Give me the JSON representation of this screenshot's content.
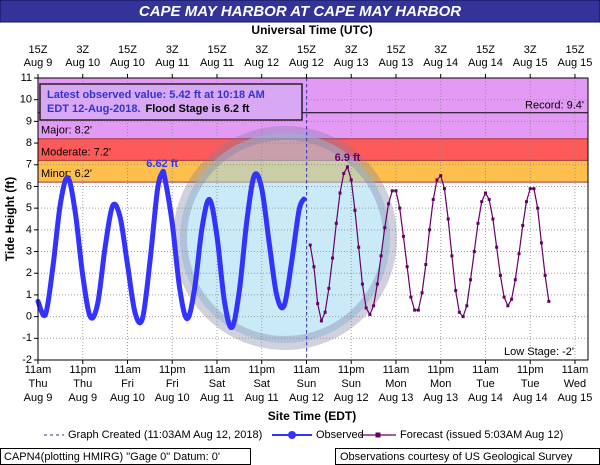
{
  "chart_data": {
    "type": "line",
    "title": "CAPE MAY HARBOR AT CAPE MAY HARBOR",
    "top_axis_label": "Universal Time (UTC)",
    "xlabel": "Site Time (EDT)",
    "ylabel": "Tide Height (ft)",
    "xlim": [
      "Aug 9 11:00",
      "Aug 15 14:30"
    ],
    "ylim": [
      -2,
      11
    ],
    "yticks": [
      -2,
      -1,
      0,
      1,
      2,
      3,
      4,
      5,
      6,
      7,
      8,
      9,
      10,
      11
    ],
    "grid": true,
    "xticks": [
      {
        "value": "Aug 9 11:00",
        "label": [
          "11am",
          "Thu",
          "Aug 9"
        ]
      },
      {
        "value": "Aug 9 23:00",
        "label": [
          "11pm",
          "Thu",
          "Aug 9"
        ]
      },
      {
        "value": "Aug 10 11:00",
        "label": [
          "11am",
          "Fri",
          "Aug 10"
        ]
      },
      {
        "value": "Aug 10 23:00",
        "label": [
          "11pm",
          "Fri",
          "Aug 10"
        ]
      },
      {
        "value": "Aug 11 11:00",
        "label": [
          "11am",
          "Sat",
          "Aug 11"
        ]
      },
      {
        "value": "Aug 11 23:00",
        "label": [
          "11pm",
          "Sat",
          "Aug 11"
        ]
      },
      {
        "value": "Aug 12 11:00",
        "label": [
          "11am",
          "Sun",
          "Aug 12"
        ]
      },
      {
        "value": "Aug 12 23:00",
        "label": [
          "11pm",
          "Sun",
          "Aug 12"
        ]
      },
      {
        "value": "Aug 13 11:00",
        "label": [
          "11am",
          "Mon",
          "Aug 13"
        ]
      },
      {
        "value": "Aug 13 23:00",
        "label": [
          "11pm",
          "Mon",
          "Aug 13"
        ]
      },
      {
        "value": "Aug 14 11:00",
        "label": [
          "11am",
          "Tue",
          "Aug 14"
        ]
      },
      {
        "value": "Aug 14 23:00",
        "label": [
          "11pm",
          "Tue",
          "Aug 14"
        ]
      },
      {
        "value": "Aug 15 11:00",
        "label": [
          "11am",
          "Wed",
          "Aug 15"
        ]
      }
    ],
    "top_xticks": [
      {
        "value": "Aug 9 11:00",
        "label": [
          "15Z",
          "Aug 9"
        ]
      },
      {
        "value": "Aug 9 23:00",
        "label": [
          "3Z",
          "Aug 10"
        ]
      },
      {
        "value": "Aug 10 11:00",
        "label": [
          "15Z",
          "Aug 10"
        ]
      },
      {
        "value": "Aug 10 23:00",
        "label": [
          "3Z",
          "Aug 11"
        ]
      },
      {
        "value": "Aug 11 11:00",
        "label": [
          "15Z",
          "Aug 11"
        ]
      },
      {
        "value": "Aug 11 23:00",
        "label": [
          "3Z",
          "Aug 12"
        ]
      },
      {
        "value": "Aug 12 11:00",
        "label": [
          "15Z",
          "Aug 12"
        ]
      },
      {
        "value": "Aug 12 23:00",
        "label": [
          "3Z",
          "Aug 13"
        ]
      },
      {
        "value": "Aug 13 11:00",
        "label": [
          "15Z",
          "Aug 13"
        ]
      },
      {
        "value": "Aug 13 23:00",
        "label": [
          "3Z",
          "Aug 14"
        ]
      },
      {
        "value": "Aug 14 11:00",
        "label": [
          "15Z",
          "Aug 14"
        ]
      },
      {
        "value": "Aug 14 23:00",
        "label": [
          "3Z",
          "Aug 15"
        ]
      },
      {
        "value": "Aug 15 11:00",
        "label": [
          "15Z",
          "Aug 15"
        ]
      }
    ],
    "flood_categories": [
      {
        "name": "Minor",
        "value": 6.2,
        "label": "Minor: 6.2'",
        "color": "#ffbf4d"
      },
      {
        "name": "Moderate",
        "value": 7.2,
        "label": "Moderate: 7.2'",
        "color": "#ff5a5a"
      },
      {
        "name": "Major",
        "value": 8.2,
        "label": "Major: 8.2'",
        "color": "#e39af5"
      }
    ],
    "record": {
      "value": 9.4,
      "label": "Record: 9.4'"
    },
    "low_stage": {
      "value": -2,
      "label": "Low Stage: -2'"
    },
    "info": [
      "Latest observed value: 5.42 ft at 10:18 AM",
      "EDT 12-Aug-2018.",
      "Flood Stage is 6.2 ft"
    ],
    "created": {
      "value": "Aug 12 11:03",
      "label": "Graph Created (11:03AM Aug 12, 2018)"
    },
    "series": [
      {
        "name": "Observed",
        "color": "#3333ff",
        "x": [
          "Aug 9 11:00",
          "Aug 9 13:00",
          "Aug 9 15:00",
          "Aug 9 17:00",
          "Aug 9 19:00",
          "Aug 9 21:00",
          "Aug 9 23:00",
          "Aug 10 01:00",
          "Aug 10 03:00",
          "Aug 10 05:00",
          "Aug 10 07:00",
          "Aug 10 09:00",
          "Aug 10 11:00",
          "Aug 10 13:00",
          "Aug 10 15:00",
          "Aug 10 17:00",
          "Aug 10 19:00",
          "Aug 10 20:18",
          "Aug 10 21:00",
          "Aug 10 23:00",
          "Aug 11 01:00",
          "Aug 11 03:00",
          "Aug 11 05:00",
          "Aug 11 07:00",
          "Aug 11 09:00",
          "Aug 11 11:00",
          "Aug 11 13:00",
          "Aug 11 15:00",
          "Aug 11 17:00",
          "Aug 11 19:00",
          "Aug 11 21:00",
          "Aug 11 23:00",
          "Aug 12 01:00",
          "Aug 12 03:00",
          "Aug 12 05:00",
          "Aug 12 07:00",
          "Aug 12 09:00",
          "Aug 12 10:18"
        ],
        "values": [
          0.7,
          0.1,
          2.3,
          5.2,
          6.4,
          4.8,
          1.9,
          0.0,
          0.6,
          3.2,
          5.1,
          4.6,
          2.4,
          0.2,
          -0.1,
          2.5,
          5.8,
          6.62,
          6.4,
          4.3,
          1.3,
          -0.1,
          1.3,
          4.1,
          5.4,
          3.7,
          0.7,
          -0.5,
          1.2,
          4.4,
          6.5,
          5.9,
          3.4,
          1.0,
          0.5,
          2.5,
          4.9,
          5.42
        ],
        "value_labels": [
          null,
          null,
          null,
          null,
          null,
          null,
          null,
          null,
          null,
          null,
          null,
          null,
          null,
          null,
          null,
          null,
          null,
          "6.62 ft",
          null,
          null,
          null,
          null,
          null,
          null,
          null,
          null,
          null,
          null,
          null,
          null,
          null,
          null,
          null,
          null,
          null,
          null,
          null,
          null
        ]
      },
      {
        "name": "Forecast (issued 5:03AM Aug 12)",
        "color": "#660066",
        "x": [
          "Aug 12 12:00",
          "Aug 12 13:00",
          "Aug 12 14:00",
          "Aug 12 15:00",
          "Aug 12 16:00",
          "Aug 12 17:00",
          "Aug 12 18:00",
          "Aug 12 19:00",
          "Aug 12 20:00",
          "Aug 12 21:00",
          "Aug 12 22:00",
          "Aug 12 23:00",
          "Aug 13 00:00",
          "Aug 13 01:00",
          "Aug 13 02:00",
          "Aug 13 03:00",
          "Aug 13 04:00",
          "Aug 13 05:00",
          "Aug 13 06:00",
          "Aug 13 07:00",
          "Aug 13 08:00",
          "Aug 13 09:00",
          "Aug 13 10:00",
          "Aug 13 11:00",
          "Aug 13 12:00",
          "Aug 13 13:00",
          "Aug 13 14:00",
          "Aug 13 15:00",
          "Aug 13 16:00",
          "Aug 13 17:00",
          "Aug 13 18:00",
          "Aug 13 19:00",
          "Aug 13 20:00",
          "Aug 13 21:00",
          "Aug 13 22:00",
          "Aug 13 23:00",
          "Aug 14 00:00",
          "Aug 14 01:00",
          "Aug 14 02:00",
          "Aug 14 03:00",
          "Aug 14 04:00",
          "Aug 14 05:00",
          "Aug 14 06:00",
          "Aug 14 07:00",
          "Aug 14 08:00",
          "Aug 14 09:00",
          "Aug 14 10:00",
          "Aug 14 11:00",
          "Aug 14 12:00",
          "Aug 14 13:00",
          "Aug 14 14:00",
          "Aug 14 15:00",
          "Aug 14 16:00",
          "Aug 14 17:00",
          "Aug 14 18:00",
          "Aug 14 19:00",
          "Aug 14 20:00",
          "Aug 14 21:00",
          "Aug 14 22:00",
          "Aug 14 23:00",
          "Aug 15 00:00",
          "Aug 15 01:00",
          "Aug 15 02:00",
          "Aug 15 03:00",
          "Aug 15 04:00"
        ],
        "values": [
          3.3,
          2.3,
          0.6,
          -0.2,
          0.2,
          1.3,
          2.7,
          4.3,
          5.7,
          6.6,
          6.9,
          6.3,
          4.9,
          3.2,
          1.5,
          0.4,
          0.1,
          0.5,
          1.5,
          2.8,
          4.1,
          5.2,
          5.8,
          5.8,
          5.0,
          3.7,
          2.3,
          0.9,
          0.3,
          0.3,
          1.1,
          2.4,
          4.0,
          5.4,
          6.3,
          6.5,
          5.9,
          4.5,
          2.8,
          1.2,
          0.2,
          0.0,
          0.5,
          1.7,
          3.0,
          4.3,
          5.3,
          5.7,
          5.4,
          4.5,
          3.2,
          1.9,
          0.9,
          0.5,
          0.8,
          1.7,
          2.9,
          4.2,
          5.3,
          5.9,
          5.9,
          5.0,
          3.4,
          1.9,
          0.7
        ],
        "value_labels": [
          null,
          null,
          null,
          null,
          null,
          null,
          null,
          null,
          null,
          null,
          "6.9 ft",
          null,
          null,
          null,
          null,
          null,
          null,
          null,
          null,
          null,
          null,
          null,
          null,
          null,
          null,
          null,
          null,
          null,
          null,
          null,
          null,
          null,
          null,
          null,
          null,
          null,
          null,
          null,
          null,
          null,
          null,
          null,
          null,
          null,
          null,
          null,
          null,
          null,
          null,
          null,
          null,
          null,
          null,
          null,
          null,
          null,
          null,
          null,
          null,
          null,
          null,
          null,
          null,
          null,
          null
        ]
      }
    ],
    "footer_left": "CAPN4(plotting HMIRG) \"Gage 0\" Datum: 0'",
    "footer_right": "Observations courtesy of US Geological Survey"
  }
}
